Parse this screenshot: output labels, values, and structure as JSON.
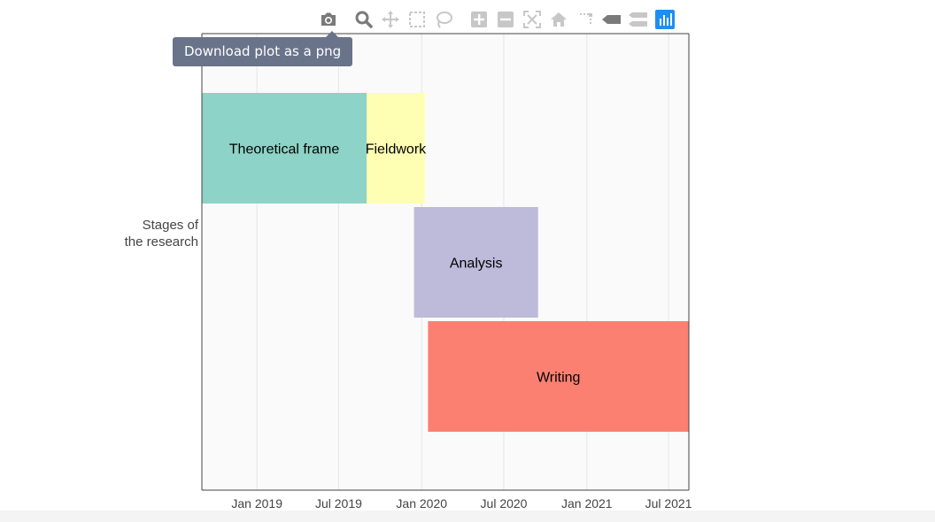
{
  "chart_data": {
    "type": "bar",
    "orientation": "horizontal",
    "subtype": "timeline",
    "ylabel": "Stages of\nthe research",
    "ylabel_lines": [
      "Stages of",
      "the research"
    ],
    "xlim": [
      "2018-09-01",
      "2021-08-15"
    ],
    "x_ticks": [
      "2019-01-01",
      "2019-07-01",
      "2020-01-01",
      "2020-07-01",
      "2021-01-01",
      "2021-07-01"
    ],
    "x_tick_labels": [
      "Jan 2019",
      "Jul 2019",
      "Jan 2020",
      "Jul 2020",
      "Jan 2021",
      "Jul 2021"
    ],
    "grid": true,
    "rows": 4,
    "tasks": [
      {
        "name": "Theoretical frame",
        "start": "2018-09-01",
        "end": "2019-09-01",
        "row": 0,
        "color": "#8dd3c7"
      },
      {
        "name": "Fieldwork",
        "start": "2019-09-01",
        "end": "2020-01-08",
        "row": 0,
        "color": "#ffffb3"
      },
      {
        "name": "Analysis",
        "start": "2019-12-15",
        "end": "2020-09-15",
        "row": 1,
        "color": "#bebada"
      },
      {
        "name": "Writing",
        "start": "2020-01-15",
        "end": "2021-08-15",
        "row": 2,
        "color": "#fb8072"
      }
    ]
  },
  "modebar": {
    "icons": [
      "camera-icon",
      "zoom-icon",
      "pan-icon",
      "box-select-icon",
      "lasso-icon",
      "zoom-in-icon",
      "zoom-out-icon",
      "autoscale-icon",
      "reset-axes-icon",
      "spike-lines-icon",
      "hover-closest-icon",
      "hover-compare-icon",
      "plotly-logo-icon"
    ],
    "tooltip": "Download plot as a png",
    "active_color": "#1f8ef1",
    "icon_color": "#c7c7c7"
  }
}
